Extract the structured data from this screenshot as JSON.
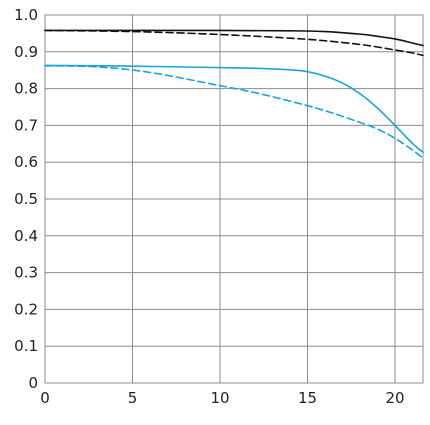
{
  "chart_data": {
    "type": "line",
    "title": "",
    "xlabel": "",
    "ylabel": "",
    "xlim": [
      0,
      21.6
    ],
    "ylim": [
      0,
      1.0
    ],
    "grid": true,
    "x_ticks": [
      "0",
      "5",
      "10",
      "15",
      "20"
    ],
    "x_tick_values": [
      0,
      5,
      10,
      15,
      20
    ],
    "y_ticks": [
      "0",
      "0.1",
      "0.2",
      "0.3",
      "0.4",
      "0.5",
      "0.6",
      "0.7",
      "0.8",
      "0.9",
      "1.0"
    ],
    "y_tick_values": [
      0,
      0.1,
      0.2,
      0.3,
      0.4,
      0.5,
      0.6,
      0.7,
      0.8,
      0.9,
      1.0
    ],
    "series": [
      {
        "color": "#111111",
        "dash": "solid",
        "points": [
          [
            0,
            0.958
          ],
          [
            5,
            0.958
          ],
          [
            10,
            0.958
          ],
          [
            14,
            0.957
          ],
          [
            16,
            0.955
          ],
          [
            18,
            0.948
          ],
          [
            19,
            0.942
          ],
          [
            20,
            0.935
          ],
          [
            21,
            0.924
          ],
          [
            21.6,
            0.917
          ]
        ]
      },
      {
        "color": "#111111",
        "dash": "dashed",
        "points": [
          [
            0,
            0.958
          ],
          [
            5,
            0.955
          ],
          [
            10,
            0.947
          ],
          [
            14,
            0.937
          ],
          [
            16,
            0.93
          ],
          [
            18,
            0.92
          ],
          [
            19,
            0.913
          ],
          [
            20,
            0.905
          ],
          [
            21,
            0.897
          ],
          [
            21.6,
            0.89
          ]
        ]
      },
      {
        "color": "#1aa3dd",
        "dash": "solid",
        "points": [
          [
            0,
            0.863
          ],
          [
            5,
            0.861
          ],
          [
            10,
            0.857
          ],
          [
            12,
            0.855
          ],
          [
            14,
            0.851
          ],
          [
            15,
            0.846
          ],
          [
            16,
            0.834
          ],
          [
            17,
            0.815
          ],
          [
            18,
            0.786
          ],
          [
            19,
            0.747
          ],
          [
            20,
            0.7
          ],
          [
            21,
            0.651
          ],
          [
            21.6,
            0.627
          ]
        ]
      },
      {
        "color": "#1aa3dd",
        "dash": "dashed",
        "points": [
          [
            0,
            0.862
          ],
          [
            3,
            0.859
          ],
          [
            6,
            0.844
          ],
          [
            10,
            0.808
          ],
          [
            12,
            0.789
          ],
          [
            14,
            0.766
          ],
          [
            16,
            0.74
          ],
          [
            18,
            0.708
          ],
          [
            19,
            0.69
          ],
          [
            20,
            0.665
          ],
          [
            21,
            0.633
          ],
          [
            21.6,
            0.611
          ]
        ]
      }
    ]
  }
}
